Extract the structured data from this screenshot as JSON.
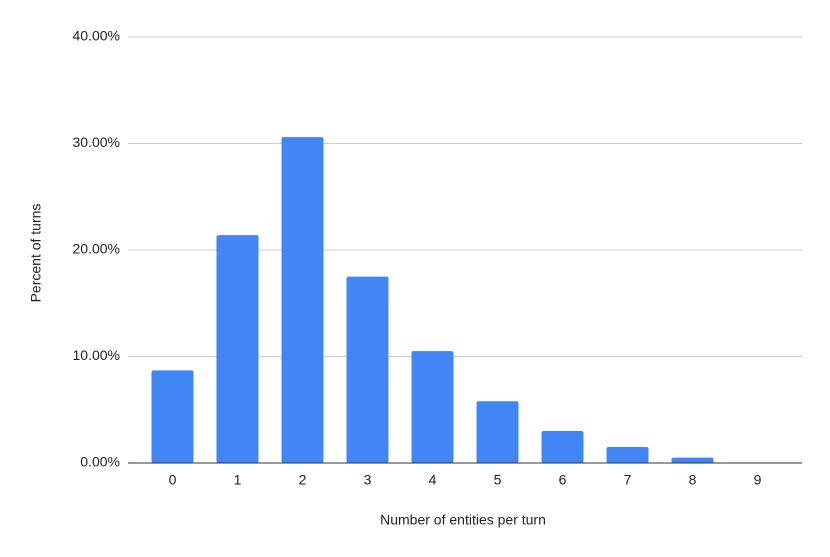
{
  "chart_data": {
    "type": "bar",
    "x_label": "Number of entities per turn",
    "y_label": "Percent of turns",
    "categories": [
      "0",
      "1",
      "2",
      "3",
      "4",
      "5",
      "6",
      "7",
      "8",
      "9"
    ],
    "values": [
      8.7,
      21.4,
      30.6,
      17.5,
      10.5,
      5.8,
      3.0,
      1.5,
      0.5,
      0
    ],
    "color": "#4285f4",
    "ylim": [
      0,
      40
    ],
    "yticks": [
      {
        "value": 0,
        "label": "0.00%"
      },
      {
        "value": 10,
        "label": "10.00%"
      },
      {
        "value": 20,
        "label": "20.00%"
      },
      {
        "value": 30,
        "label": "30.00%"
      },
      {
        "value": 40,
        "label": "40.00%"
      }
    ],
    "grid": true
  }
}
